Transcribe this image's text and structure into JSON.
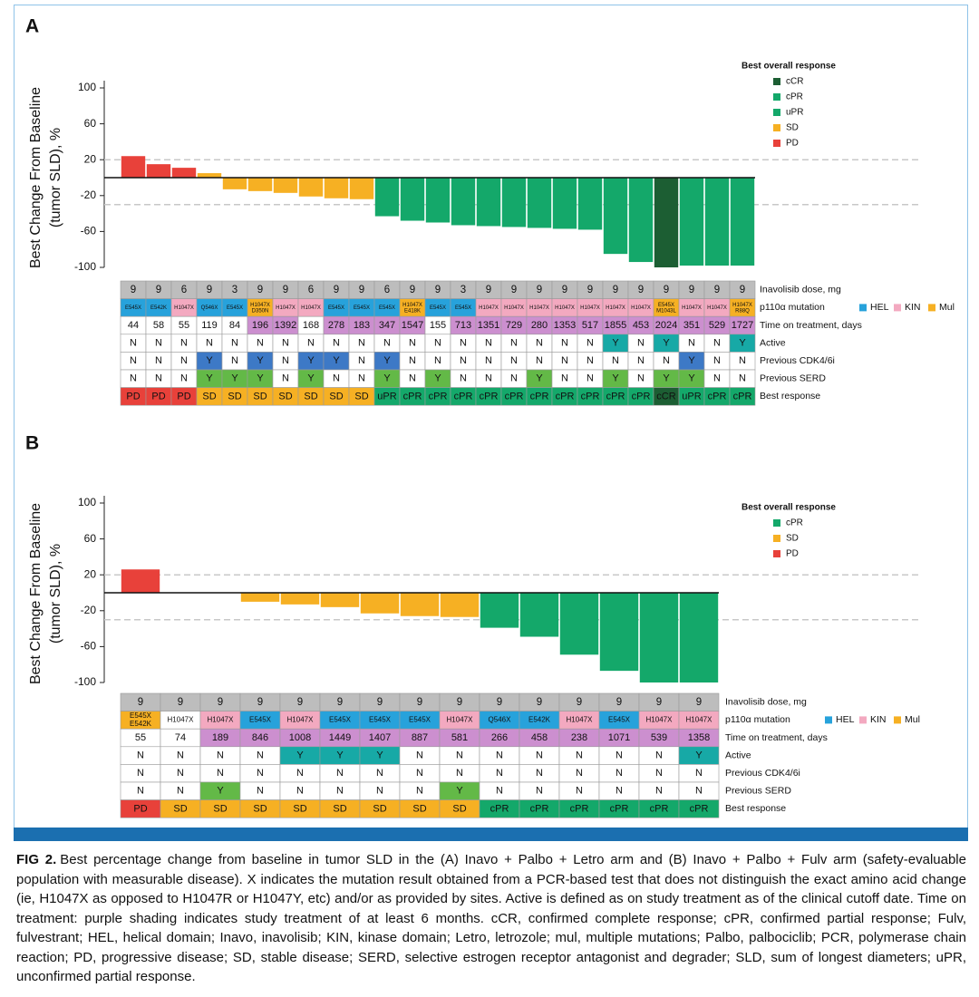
{
  "figure": {
    "caption_label": "FIG 2.",
    "caption": "Best percentage change from baseline in tumor SLD in the (A) Inavo + Palbo + Letro arm and (B) Inavo + Palbo + Fulv arm (safety-evaluable population with measurable disease). X indicates the mutation result obtained from a PCR-based test that does not distinguish the exact amino acid change (ie, H1047X as opposed to H1047R or H1047Y, etc) and/or as provided by sites. Active is defined as on study treatment as of the clinical cutoff date. Time on treatment: purple shading indicates study treatment of at least 6 months. cCR, confirmed complete response; cPR, confirmed partial response; Fulv, fulvestrant; HEL, helical domain; Inavo, inavolisib; KIN, kinase domain; Letro, letrozole; mul, multiple mutations; Palbo, palbociclib; PCR, polymerase chain reaction; PD, progressive disease; SD, stable disease; SERD, selective estrogen receptor antagonist and degrader; SLD, sum of longest diameters; uPR, unconfirmed partial response."
  },
  "chart_data": [
    {
      "type": "bar",
      "panel": "A",
      "ylabel": [
        "Best Change From Baseline",
        "(tumor SLD), %"
      ],
      "ylim": [
        -100,
        100
      ],
      "yticks": [
        100,
        60,
        20,
        -20,
        -60,
        -100
      ],
      "reference_lines": [
        20,
        -30
      ],
      "values": [
        24,
        15,
        11,
        5,
        -13,
        -15,
        -17,
        -21,
        -23,
        -24,
        -43,
        -48,
        -50,
        -53,
        -54,
        -55,
        -56,
        -57,
        -58,
        -85,
        -94,
        -100,
        -98,
        -98,
        -98
      ],
      "legend": {
        "title": "Best overall response",
        "items": [
          {
            "name": "cCR",
            "color": "#1c5e33"
          },
          {
            "name": "cPR",
            "color": "#14a86a"
          },
          {
            "name": "uPR",
            "color": "#14a86a"
          },
          {
            "name": "SD",
            "color": "#f6b023"
          },
          {
            "name": "PD",
            "color": "#e8413a"
          }
        ]
      },
      "mutation_legend": [
        {
          "name": "HEL",
          "color": "#27a2db"
        },
        {
          "name": "KIN",
          "color": "#f3a9c0"
        },
        {
          "name": "Mul",
          "color": "#f6b023"
        }
      ],
      "table": {
        "dose": {
          "label": "Inavolisib dose, mg",
          "fill": "#bdbdbd",
          "values": [
            9,
            9,
            6,
            9,
            3,
            9,
            9,
            6,
            9,
            9,
            6,
            9,
            9,
            3,
            9,
            9,
            9,
            9,
            9,
            9,
            9,
            9,
            9,
            9,
            9
          ]
        },
        "mutation": {
          "label": "p110α mutation",
          "values": [
            "E545X",
            "E542K",
            "H1047X",
            "Q546X",
            "E545X",
            [
              "H1047X",
              "D350N"
            ],
            "H1047X",
            "H1047X",
            "E545X",
            "E545X",
            "E545X",
            [
              "H1047X",
              "E418K"
            ],
            "E545X",
            "E545X",
            "H1047X",
            "H1047X",
            "H1047X",
            "H1047X",
            "H1047X",
            "H1047X",
            "H1047X",
            [
              "E545X",
              "M1043L"
            ],
            "H1047X",
            "H1047X",
            [
              "H1047X",
              "R88Q"
            ]
          ],
          "domains": [
            "HEL",
            "HEL",
            "KIN",
            "HEL",
            "HEL",
            "Mul",
            "KIN",
            "KIN",
            "HEL",
            "HEL",
            "HEL",
            "Mul",
            "HEL",
            "HEL",
            "KIN",
            "KIN",
            "KIN",
            "KIN",
            "KIN",
            "KIN",
            "KIN",
            "Mul",
            "KIN",
            "KIN",
            "Mul"
          ]
        },
        "time": {
          "label": "Time on treatment, days",
          "fill": "#cc8fcf",
          "values": [
            44,
            58,
            55,
            119,
            84,
            196,
            1392,
            168,
            278,
            183,
            347,
            1547,
            155,
            713,
            1351,
            729,
            280,
            1353,
            517,
            1855,
            453,
            2024,
            351,
            529,
            1727
          ],
          "shaded": [
            false,
            false,
            false,
            false,
            false,
            true,
            true,
            false,
            true,
            true,
            true,
            true,
            false,
            true,
            true,
            true,
            true,
            true,
            true,
            true,
            true,
            true,
            true,
            true,
            true
          ]
        },
        "active": {
          "label": "Active",
          "fill": "#17a9a6",
          "values": [
            "N",
            "N",
            "N",
            "N",
            "N",
            "N",
            "N",
            "N",
            "N",
            "N",
            "N",
            "N",
            "N",
            "N",
            "N",
            "N",
            "N",
            "N",
            "N",
            "Y",
            "N",
            "Y",
            "N",
            "N",
            "Y"
          ]
        },
        "cdk": {
          "label": "Previous CDK4/6i",
          "fill": "#3d79c6",
          "values": [
            "N",
            "N",
            "N",
            "Y",
            "N",
            "Y",
            "N",
            "Y",
            "Y",
            "N",
            "Y",
            "N",
            "N",
            "N",
            "N",
            "N",
            "N",
            "N",
            "N",
            "N",
            "N",
            "N",
            "Y",
            "N",
            "N"
          ]
        },
        "serd": {
          "label": "Previous SERD",
          "fill": "#63b947",
          "values": [
            "N",
            "N",
            "N",
            "Y",
            "Y",
            "Y",
            "N",
            "Y",
            "N",
            "N",
            "Y",
            "N",
            "Y",
            "N",
            "N",
            "N",
            "Y",
            "N",
            "N",
            "Y",
            "N",
            "Y",
            "Y",
            "N",
            "N"
          ]
        },
        "response": {
          "label": "Best response",
          "values": [
            "PD",
            "PD",
            "PD",
            "SD",
            "SD",
            "SD",
            "SD",
            "SD",
            "SD",
            "SD",
            "uPR",
            "cPR",
            "cPR",
            "cPR",
            "cPR",
            "cPR",
            "cPR",
            "cPR",
            "cPR",
            "cPR",
            "cPR",
            "cCR",
            "uPR",
            "cPR",
            "cPR"
          ]
        }
      }
    },
    {
      "type": "bar",
      "panel": "B",
      "ylabel": [
        "Best Change From Baseline",
        "(tumor SLD), %"
      ],
      "ylim": [
        -100,
        100
      ],
      "yticks": [
        100,
        60,
        20,
        -20,
        -60,
        -100
      ],
      "reference_lines": [
        20,
        -30
      ],
      "values": [
        26,
        0,
        0,
        -10,
        -13,
        -16,
        -23,
        -26,
        -27,
        -39,
        -49,
        -69,
        -87,
        -100,
        -100
      ],
      "legend": {
        "title": "Best overall response",
        "items": [
          {
            "name": "cPR",
            "color": "#14a86a"
          },
          {
            "name": "SD",
            "color": "#f6b023"
          },
          {
            "name": "PD",
            "color": "#e8413a"
          }
        ]
      },
      "mutation_legend": [
        {
          "name": "HEL",
          "color": "#27a2db"
        },
        {
          "name": "KIN",
          "color": "#f3a9c0"
        },
        {
          "name": "Mul",
          "color": "#f6b023"
        }
      ],
      "table": {
        "dose": {
          "label": "Inavolisib dose, mg",
          "fill": "#bdbdbd",
          "values": [
            9,
            9,
            9,
            9,
            9,
            9,
            9,
            9,
            9,
            9,
            9,
            9,
            9,
            9,
            9
          ]
        },
        "mutation": {
          "label": "p110α mutation",
          "values": [
            [
              "E545X",
              "E542K"
            ],
            "H1047X",
            "H1047X",
            "E545X",
            "H1047X",
            "E545X",
            "E545X",
            "E545X",
            "H1047X",
            "Q546X",
            "E542K",
            "H1047X",
            "E545X",
            "H1047X",
            "H1047X"
          ],
          "domains": [
            "Mul",
            null,
            "KIN",
            "HEL",
            "KIN",
            "HEL",
            "HEL",
            "HEL",
            "KIN",
            "HEL",
            "HEL",
            "KIN",
            "HEL",
            "KIN",
            "KIN"
          ]
        },
        "time": {
          "label": "Time on treatment, days",
          "fill": "#cc8fcf",
          "values": [
            55,
            74,
            189,
            846,
            1008,
            1449,
            1407,
            887,
            581,
            266,
            458,
            238,
            1071,
            539,
            1358
          ],
          "shaded": [
            false,
            false,
            true,
            true,
            true,
            true,
            true,
            true,
            true,
            true,
            true,
            true,
            true,
            true,
            true
          ]
        },
        "active": {
          "label": "Active",
          "fill": "#17a9a6",
          "values": [
            "N",
            "N",
            "N",
            "N",
            "Y",
            "Y",
            "Y",
            "N",
            "N",
            "N",
            "N",
            "N",
            "N",
            "N",
            "Y"
          ]
        },
        "cdk": {
          "label": "Previous CDK4/6i",
          "fill": "#3d79c6",
          "values": [
            "N",
            "N",
            "N",
            "N",
            "N",
            "N",
            "N",
            "N",
            "N",
            "N",
            "N",
            "N",
            "N",
            "N",
            "N"
          ]
        },
        "serd": {
          "label": "Previous SERD",
          "fill": "#63b947",
          "values": [
            "N",
            "N",
            "Y",
            "N",
            "N",
            "N",
            "N",
            "N",
            "Y",
            "N",
            "N",
            "N",
            "N",
            "N",
            "N"
          ]
        },
        "response": {
          "label": "Best response",
          "values": [
            "PD",
            "SD",
            "SD",
            "SD",
            "SD",
            "SD",
            "SD",
            "SD",
            "SD",
            "cPR",
            "cPR",
            "cPR",
            "cPR",
            "cPR",
            "cPR"
          ]
        }
      }
    }
  ]
}
